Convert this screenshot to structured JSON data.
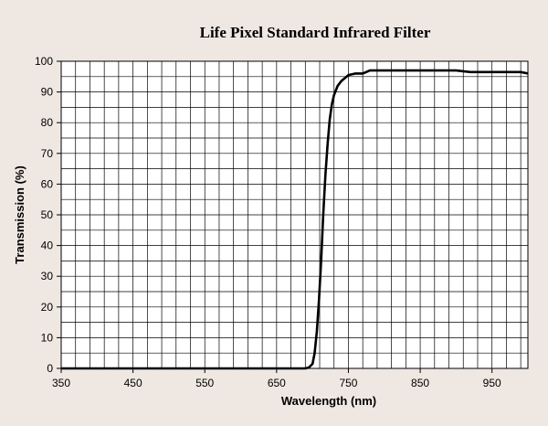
{
  "chart_data": {
    "type": "line",
    "title": "Life Pixel Standard Infrared Filter",
    "xlabel": "Wavelength (nm)",
    "ylabel": "Transmission (%)",
    "xlim": [
      350,
      1000
    ],
    "ylim": [
      0,
      100
    ],
    "x_ticks": [
      350,
      450,
      550,
      650,
      750,
      850,
      950
    ],
    "y_ticks": [
      0,
      10,
      20,
      30,
      40,
      50,
      60,
      70,
      80,
      90,
      100
    ],
    "grid": true,
    "series": [
      {
        "name": "Transmission",
        "color": "#000000",
        "x": [
          350,
          690,
          695,
          700,
          703,
          706,
          709,
          712,
          715,
          718,
          721,
          724,
          727,
          730,
          735,
          740,
          745,
          750,
          760,
          770,
          780,
          800,
          850,
          900,
          920,
          950,
          990,
          1000
        ],
        "y": [
          0,
          0,
          0.3,
          1.5,
          5,
          12,
          22,
          35,
          50,
          63,
          73,
          81,
          86,
          89,
          92,
          93.5,
          94.5,
          95.5,
          96,
          96,
          97,
          97,
          97,
          97,
          96.5,
          96.5,
          96.5,
          96
        ]
      }
    ]
  }
}
